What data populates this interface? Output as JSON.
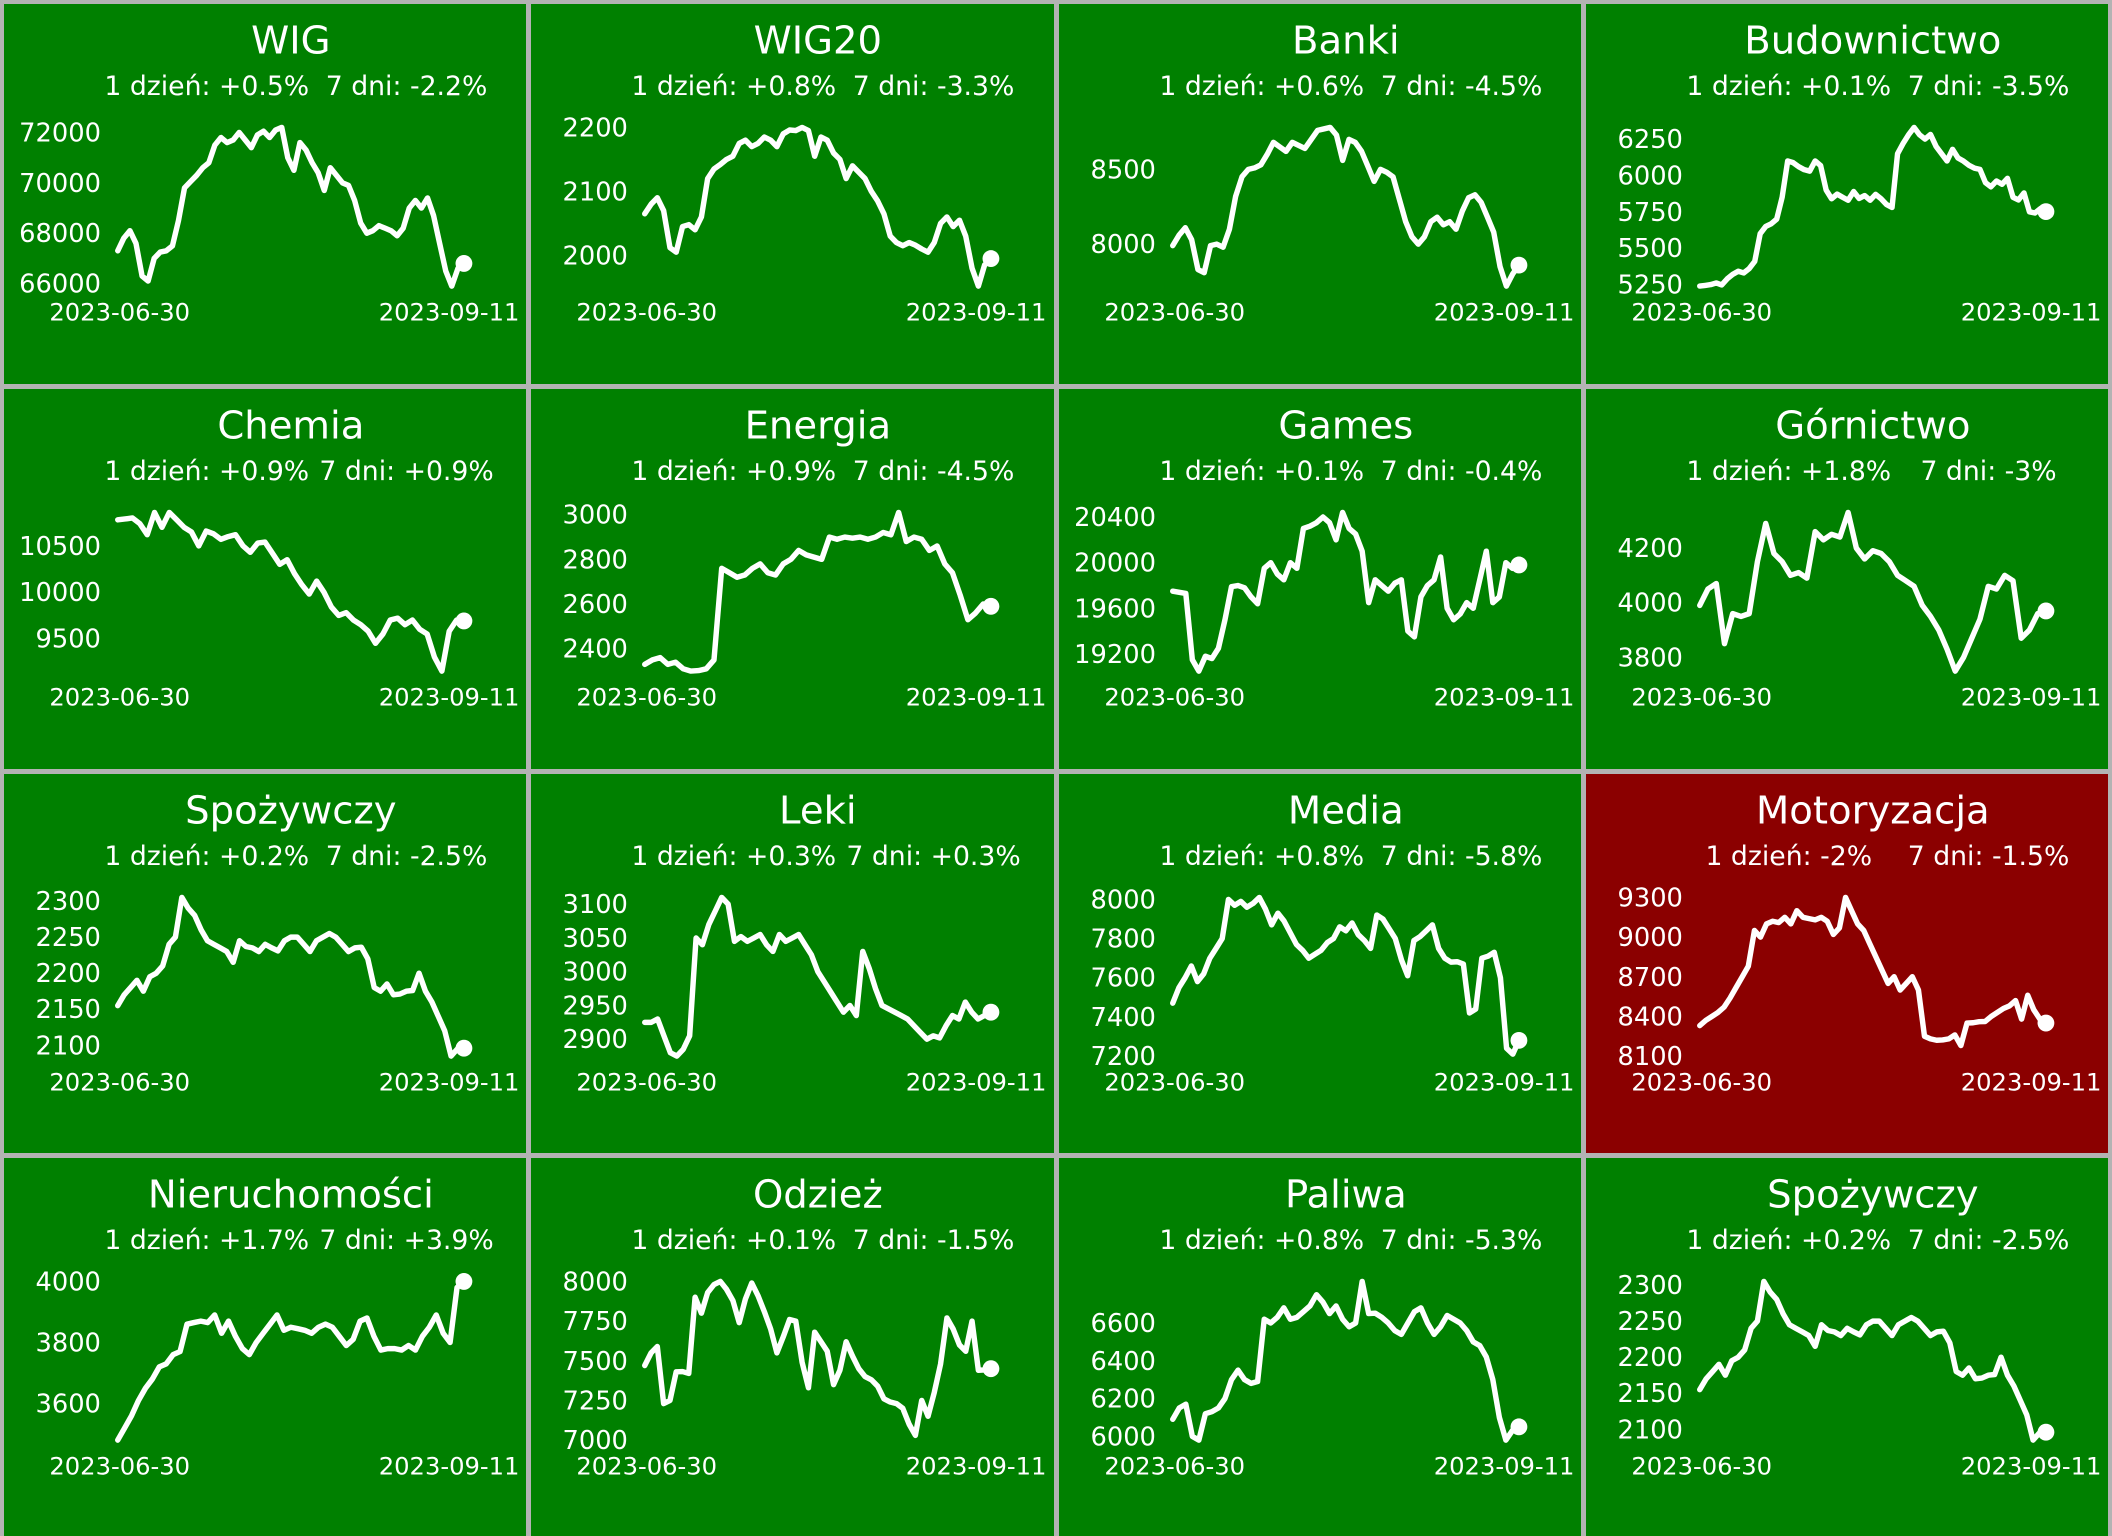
{
  "figure": {
    "background": "#b3b3b3",
    "panel_green": "#008000",
    "panel_red": "#8b0000",
    "line_color": "#ffffff",
    "text_color": "#ffffff",
    "grid": "4x4"
  },
  "chart_data": [
    {
      "type": "line",
      "title": "WIG",
      "day_text": "1 dzień: +0.5%",
      "week_text": "7 dni: -2.2%",
      "x_start": "2023-06-30",
      "x_end": "2023-09-11",
      "bg": "#008000",
      "yticks": [
        72000,
        70000,
        68000,
        66000
      ],
      "values": [
        67300,
        67800,
        68100,
        67600,
        66300,
        66100,
        67000,
        67250,
        67300,
        67500,
        68500,
        69800,
        70050,
        70300,
        70600,
        70800,
        71500,
        71800,
        71600,
        71700,
        72000,
        71700,
        71400,
        71900,
        72050,
        71800,
        72100,
        72200,
        71000,
        70500,
        71600,
        71300,
        70800,
        70400,
        69700,
        70600,
        70300,
        70000,
        69900,
        69300,
        68400,
        68000,
        68100,
        68300,
        68200,
        68100,
        67900,
        68200,
        69000,
        69300,
        69000,
        69400,
        68700,
        67600,
        66500,
        65900,
        66600,
        66800
      ]
    },
    {
      "type": "line",
      "title": "WIG20",
      "day_text": "1 dzień: +0.8%",
      "week_text": "7 dni: -3.3%",
      "x_start": "2023-06-30",
      "x_end": "2023-09-11",
      "bg": "#008000",
      "yticks": [
        2200,
        2100,
        2000
      ],
      "values": [
        2065,
        2080,
        2090,
        2070,
        2012,
        2005,
        2045,
        2048,
        2040,
        2060,
        2120,
        2135,
        2142,
        2150,
        2155,
        2175,
        2180,
        2170,
        2175,
        2185,
        2180,
        2170,
        2190,
        2196,
        2195,
        2200,
        2195,
        2155,
        2185,
        2180,
        2160,
        2150,
        2120,
        2140,
        2130,
        2120,
        2100,
        2085,
        2065,
        2030,
        2020,
        2015,
        2020,
        2016,
        2010,
        2005,
        2020,
        2050,
        2060,
        2045,
        2055,
        2030,
        1980,
        1952,
        1985,
        1995
      ]
    },
    {
      "type": "line",
      "title": "Banki",
      "day_text": "1 dzień: +0.6%",
      "week_text": "7 dni: -4.5%",
      "x_start": "2023-06-30",
      "x_end": "2023-09-11",
      "bg": "#008000",
      "yticks": [
        8500,
        8000
      ],
      "values": [
        7990,
        8060,
        8110,
        8030,
        7830,
        7810,
        7990,
        8000,
        7980,
        8100,
        8320,
        8450,
        8500,
        8510,
        8530,
        8600,
        8680,
        8650,
        8620,
        8680,
        8660,
        8640,
        8700,
        8760,
        8770,
        8780,
        8730,
        8560,
        8700,
        8680,
        8620,
        8520,
        8420,
        8500,
        8480,
        8450,
        8300,
        8150,
        8050,
        8000,
        8050,
        8150,
        8180,
        8130,
        8150,
        8100,
        8220,
        8310,
        8330,
        8280,
        8180,
        8080,
        7850,
        7720,
        7800,
        7860
      ]
    },
    {
      "type": "line",
      "title": "Budownictwo",
      "day_text": "1 dzień: +0.1%",
      "week_text": "7 dni: -3.5%",
      "x_start": "2023-06-30",
      "x_end": "2023-09-11",
      "bg": "#008000",
      "yticks": [
        6250,
        6000,
        5750,
        5500,
        5250
      ],
      "values": [
        5240,
        5245,
        5250,
        5262,
        5248,
        5290,
        5320,
        5342,
        5330,
        5360,
        5410,
        5600,
        5650,
        5668,
        5700,
        5850,
        6100,
        6088,
        6060,
        6040,
        6030,
        6100,
        6068,
        5900,
        5840,
        5872,
        5850,
        5830,
        5890,
        5842,
        5862,
        5830,
        5870,
        5840,
        5800,
        5780,
        6150,
        6220,
        6280,
        6330,
        6280,
        6250,
        6282,
        6200,
        6150,
        6100,
        6180,
        6120,
        6098,
        6070,
        6050,
        6042,
        5950,
        5922,
        5962,
        5940,
        5980,
        5850,
        5832,
        5880,
        5750,
        5742,
        5772,
        5752
      ]
    },
    {
      "type": "line",
      "title": "Chemia",
      "day_text": "1 dzień: +0.9%",
      "week_text": "7 dni: +0.9%",
      "x_start": "2023-06-30",
      "x_end": "2023-09-11",
      "bg": "#008000",
      "yticks": [
        10500,
        10000,
        9500
      ],
      "values": [
        10780,
        10790,
        10800,
        10740,
        10620,
        10860,
        10700,
        10860,
        10780,
        10700,
        10650,
        10500,
        10660,
        10630,
        10570,
        10600,
        10620,
        10500,
        10430,
        10530,
        10540,
        10420,
        10300,
        10350,
        10200,
        10080,
        9980,
        10120,
        10000,
        9840,
        9750,
        9780,
        9700,
        9650,
        9580,
        9450,
        9550,
        9700,
        9720,
        9650,
        9700,
        9600,
        9550,
        9300,
        9150,
        9580,
        9700,
        9690
      ]
    },
    {
      "type": "line",
      "title": "Energia",
      "day_text": "1 dzień: +0.9%",
      "week_text": "7 dni: -4.5%",
      "x_start": "2023-06-30",
      "x_end": "2023-09-11",
      "bg": "#008000",
      "yticks": [
        3000,
        2800,
        2600,
        2400
      ],
      "values": [
        2330,
        2350,
        2360,
        2330,
        2340,
        2310,
        2300,
        2302,
        2310,
        2350,
        2760,
        2740,
        2720,
        2730,
        2760,
        2780,
        2740,
        2730,
        2780,
        2800,
        2840,
        2820,
        2810,
        2800,
        2900,
        2890,
        2900,
        2895,
        2900,
        2890,
        2900,
        2920,
        2910,
        3010,
        2880,
        2900,
        2890,
        2840,
        2860,
        2780,
        2740,
        2640,
        2530,
        2560,
        2600,
        2590
      ]
    },
    {
      "type": "line",
      "title": "Games",
      "day_text": "1 dzień: +0.1%",
      "week_text": "7 dni: -0.4%",
      "x_start": "2023-06-30",
      "x_end": "2023-09-11",
      "bg": "#008000",
      "yticks": [
        20400,
        20000,
        19600,
        19200
      ],
      "values": [
        19750,
        19740,
        19730,
        19150,
        19050,
        19180,
        19160,
        19250,
        19500,
        19790,
        19800,
        19780,
        19700,
        19640,
        19950,
        20000,
        19900,
        19850,
        20000,
        19950,
        20300,
        20320,
        20350,
        20400,
        20350,
        20200,
        20440,
        20300,
        20250,
        20100,
        19650,
        19850,
        19800,
        19750,
        19820,
        19850,
        19400,
        19350,
        19700,
        19800,
        19850,
        20050,
        19600,
        19500,
        19550,
        19650,
        19600,
        19850,
        20100,
        19650,
        19700,
        20000,
        19950,
        19980
      ]
    },
    {
      "type": "line",
      "title": "Górnictwo",
      "day_text": "1 dzień: +1.8%",
      "week_text": "7 dni: -3%",
      "x_start": "2023-06-30",
      "x_end": "2023-09-11",
      "bg": "#008000",
      "yticks": [
        4200,
        4000,
        3800
      ],
      "values": [
        3990,
        4050,
        4070,
        3850,
        3960,
        3950,
        3960,
        4150,
        4290,
        4180,
        4150,
        4100,
        4110,
        4090,
        4260,
        4230,
        4250,
        4240,
        4330,
        4200,
        4160,
        4190,
        4180,
        4150,
        4100,
        4080,
        4060,
        3990,
        3950,
        3900,
        3830,
        3750,
        3800,
        3870,
        3940,
        4060,
        4050,
        4100,
        4080,
        3870,
        3900,
        3960,
        3970
      ]
    },
    {
      "type": "line",
      "title": "Spożywczy",
      "day_text": "1 dzień: +0.2%",
      "week_text": "7 dni: -2.5%",
      "x_start": "2023-06-30",
      "x_end": "2023-09-11",
      "bg": "#008000",
      "yticks": [
        2300,
        2250,
        2200,
        2150,
        2100
      ],
      "values": [
        2155,
        2170,
        2180,
        2190,
        2175,
        2195,
        2200,
        2210,
        2240,
        2250,
        2305,
        2290,
        2280,
        2260,
        2245,
        2240,
        2235,
        2230,
        2215,
        2245,
        2237,
        2235,
        2230,
        2240,
        2235,
        2231,
        2245,
        2250,
        2250,
        2240,
        2230,
        2245,
        2250,
        2255,
        2250,
        2240,
        2230,
        2235,
        2236,
        2220,
        2180,
        2175,
        2185,
        2170,
        2171,
        2175,
        2176,
        2200,
        2175,
        2160,
        2140,
        2120,
        2085,
        2095,
        2096
      ]
    },
    {
      "type": "line",
      "title": "Leki",
      "day_text": "1 dzień: +0.3%",
      "week_text": "7 dni: +0.3%",
      "x_start": "2023-06-30",
      "x_end": "2023-09-11",
      "bg": "#008000",
      "yticks": [
        3100,
        3050,
        3000,
        2950,
        2900
      ],
      "values": [
        2925,
        2925,
        2930,
        2905,
        2880,
        2875,
        2885,
        2905,
        3050,
        3040,
        3070,
        3090,
        3110,
        3100,
        3045,
        3052,
        3045,
        3050,
        3055,
        3040,
        3030,
        3055,
        3045,
        3050,
        3055,
        3040,
        3025,
        3000,
        2985,
        2970,
        2955,
        2940,
        2950,
        2935,
        3030,
        3005,
        2975,
        2950,
        2945,
        2940,
        2935,
        2930,
        2920,
        2910,
        2900,
        2905,
        2902,
        2920,
        2935,
        2930,
        2955,
        2940,
        2930,
        2935,
        2940
      ]
    },
    {
      "type": "line",
      "title": "Media",
      "day_text": "1 dzień: +0.8%",
      "week_text": "7 dni: -5.8%",
      "x_start": "2023-06-30",
      "x_end": "2023-09-11",
      "bg": "#008000",
      "yticks": [
        8000,
        7800,
        7600,
        7400,
        7200
      ],
      "values": [
        7470,
        7550,
        7600,
        7660,
        7580,
        7620,
        7700,
        7750,
        7800,
        8000,
        7970,
        7990,
        7960,
        7980,
        8010,
        7950,
        7870,
        7930,
        7890,
        7830,
        7770,
        7740,
        7700,
        7720,
        7740,
        7780,
        7800,
        7860,
        7840,
        7880,
        7820,
        7790,
        7750,
        7920,
        7900,
        7850,
        7800,
        7690,
        7610,
        7790,
        7810,
        7840,
        7870,
        7750,
        7700,
        7680,
        7682,
        7670,
        7420,
        7440,
        7700,
        7710,
        7730,
        7600,
        7240,
        7210,
        7280
      ]
    },
    {
      "type": "line",
      "title": "Motoryzacja",
      "day_text": "1 dzień: -2%",
      "week_text": "7 dni: -1.5%",
      "x_start": "2023-06-30",
      "x_end": "2023-09-11",
      "bg": "#8b0000",
      "yticks": [
        9300,
        9000,
        8700,
        8400,
        8100
      ],
      "values": [
        8330,
        8370,
        8400,
        8430,
        8470,
        8540,
        8620,
        8700,
        8780,
        9050,
        9000,
        9100,
        9120,
        9110,
        9150,
        9100,
        9200,
        9150,
        9140,
        9130,
        9150,
        9120,
        9020,
        9070,
        9300,
        9200,
        9100,
        9050,
        8950,
        8850,
        8750,
        8650,
        8700,
        8600,
        8650,
        8700,
        8600,
        8250,
        8230,
        8220,
        8222,
        8230,
        8260,
        8180,
        8350,
        8352,
        8360,
        8362,
        8400,
        8430,
        8460,
        8480,
        8520,
        8380,
        8560,
        8450,
        8380,
        8350
      ]
    },
    {
      "type": "line",
      "title": "Nieruchomości",
      "day_text": "1 dzień: +1.7%",
      "week_text": "7 dni: +3.9%",
      "x_start": "2023-06-30",
      "x_end": "2023-09-11",
      "bg": "#008000",
      "yticks": [
        4000,
        3800,
        3600
      ],
      "values": [
        3480,
        3520,
        3560,
        3610,
        3650,
        3680,
        3720,
        3730,
        3760,
        3770,
        3860,
        3865,
        3870,
        3865,
        3890,
        3830,
        3870,
        3820,
        3780,
        3760,
        3800,
        3830,
        3860,
        3890,
        3840,
        3850,
        3845,
        3840,
        3830,
        3850,
        3860,
        3850,
        3820,
        3790,
        3810,
        3870,
        3880,
        3820,
        3775,
        3780,
        3780,
        3775,
        3790,
        3775,
        3820,
        3850,
        3890,
        3830,
        3800,
        3980,
        4000
      ]
    },
    {
      "type": "line",
      "title": "Odzież",
      "day_text": "1 dzień: +0.1%",
      "week_text": "7 dni: -1.5%",
      "x_start": "2023-06-30",
      "x_end": "2023-09-11",
      "bg": "#008000",
      "yticks": [
        8000,
        7750,
        7500,
        7250,
        7000
      ],
      "values": [
        7470,
        7550,
        7590,
        7230,
        7250,
        7430,
        7432,
        7420,
        7900,
        7800,
        7930,
        7980,
        8000,
        7950,
        7880,
        7740,
        7890,
        7990,
        7910,
        7810,
        7700,
        7550,
        7650,
        7760,
        7750,
        7490,
        7330,
        7680,
        7620,
        7560,
        7350,
        7440,
        7620,
        7530,
        7450,
        7400,
        7380,
        7340,
        7260,
        7240,
        7230,
        7200,
        7100,
        7030,
        7250,
        7150,
        7300,
        7480,
        7770,
        7700,
        7600,
        7560,
        7750,
        7440,
        7442,
        7450
      ]
    },
    {
      "type": "line",
      "title": "Paliwa",
      "day_text": "1 dzień: +0.8%",
      "week_text": "7 dni: -5.3%",
      "x_start": "2023-06-30",
      "x_end": "2023-09-11",
      "bg": "#008000",
      "yticks": [
        6600,
        6400,
        6200,
        6000
      ],
      "values": [
        6090,
        6150,
        6170,
        6000,
        5980,
        6120,
        6130,
        6150,
        6200,
        6300,
        6350,
        6300,
        6280,
        6290,
        6620,
        6600,
        6630,
        6680,
        6620,
        6630,
        6660,
        6690,
        6750,
        6710,
        6650,
        6690,
        6620,
        6580,
        6600,
        6820,
        6650,
        6652,
        6630,
        6600,
        6560,
        6540,
        6600,
        6660,
        6680,
        6600,
        6540,
        6580,
        6640,
        6620,
        6600,
        6560,
        6500,
        6480,
        6420,
        6300,
        6100,
        5980,
        6030,
        6050
      ]
    },
    {
      "type": "line",
      "title": "Spożywczy",
      "day_text": "1 dzień: +0.2%",
      "week_text": "7 dni: -2.5%",
      "x_start": "2023-06-30",
      "x_end": "2023-09-11",
      "bg": "#008000",
      "yticks": [
        2300,
        2250,
        2200,
        2150,
        2100
      ],
      "values": [
        2155,
        2170,
        2180,
        2190,
        2175,
        2195,
        2200,
        2210,
        2240,
        2250,
        2305,
        2290,
        2280,
        2260,
        2245,
        2240,
        2235,
        2230,
        2215,
        2245,
        2237,
        2235,
        2230,
        2240,
        2235,
        2231,
        2245,
        2250,
        2250,
        2240,
        2230,
        2245,
        2250,
        2255,
        2250,
        2240,
        2230,
        2235,
        2236,
        2220,
        2180,
        2175,
        2185,
        2170,
        2171,
        2175,
        2176,
        2200,
        2175,
        2160,
        2140,
        2120,
        2085,
        2095,
        2096
      ]
    }
  ]
}
